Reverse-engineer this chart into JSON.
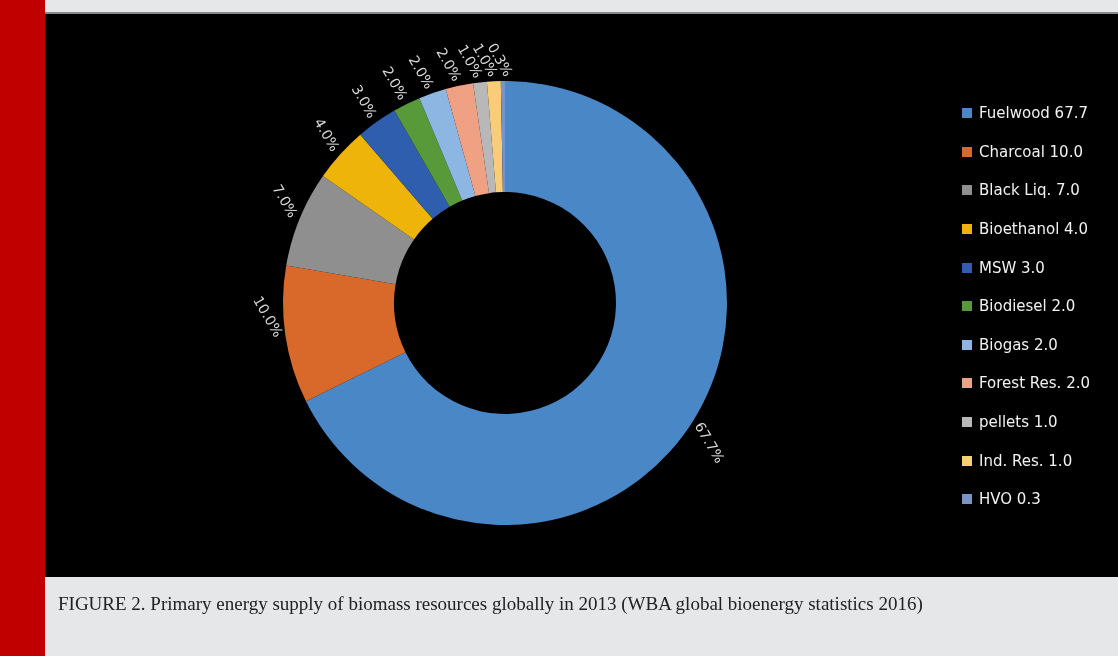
{
  "chart_data": {
    "type": "donut",
    "categories": [
      "Fuelwood 67.7",
      "Charcoal 10.0",
      "Black Liq. 7.0",
      "Bioethanol 4.0",
      "MSW 3.0",
      "Biodiesel 2.0",
      "Biogas 2.0",
      "Forest Res. 2.0",
      "pellets 1.0",
      "Ind. Res. 1.0",
      "HVO 0.3"
    ],
    "values": [
      67.7,
      10.0,
      7.0,
      4.0,
      3.0,
      2.0,
      2.0,
      2.0,
      1.0,
      1.0,
      0.3
    ],
    "colors": [
      "#4a87c6",
      "#d8692b",
      "#8f8f8f",
      "#efb40a",
      "#2f5eae",
      "#58993a",
      "#8eb6e3",
      "#f0a184",
      "#b8b8b8",
      "#f9cd78",
      "#7b93cb"
    ],
    "value_labels": [
      "67.7%",
      "10.0%",
      "7.0%",
      "4.0%",
      "3.0%",
      "2.0%",
      "2.0%",
      "2.0%",
      "1.0%",
      "1.0%",
      "0.3%"
    ],
    "legend": "right",
    "annotations": [
      "FIGURE 2. Primary energy supply of biomass resources globally in 2013 (WBA global bioenergy statistics 2016)"
    ]
  }
}
